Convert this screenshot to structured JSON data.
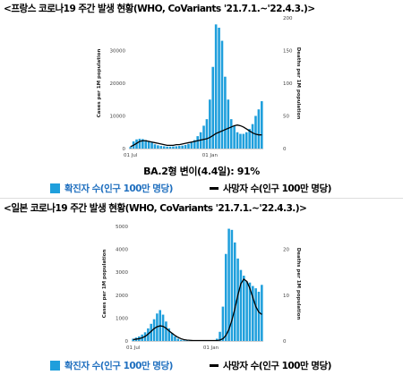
{
  "titles": {
    "france": "<프랑스 코로나19 주간 발생 현황(WHO, CoVariants '21.7.1.~'22.4.3.)>",
    "japan": "<일본 코로나19 주간 발생 현황(WHO, CoVariants '21.7.1.~'22.4.3.)>"
  },
  "note": "BA.2형 변이(4.4일): 91%",
  "legend": {
    "bar_label": "확진자 수(인구 100만 명당)",
    "line_label": "사망자 수(인구 100만 명당)",
    "bar_color": "#1f9fdc",
    "line_color": "#000000"
  },
  "chart_data": [
    {
      "type": "bar",
      "title": "",
      "xlabel": "",
      "ylabel": "Cases per 1M population",
      "y2label": "Deaths per 1M population",
      "ylim": [
        0,
        40000
      ],
      "y2lim": [
        0,
        200
      ],
      "yticks": [
        0,
        10000,
        20000,
        30000
      ],
      "y2ticks": [
        0,
        50,
        100,
        150,
        200
      ],
      "xticks": [
        "01 Jul",
        "01 Jan"
      ],
      "grid": false,
      "series": [
        {
          "name": "확진자 수(인구 100만 명당)",
          "kind": "bar",
          "axis": "left",
          "values": [
            500,
            2200,
            2800,
            3000,
            2900,
            2600,
            2200,
            1800,
            1300,
            1000,
            800,
            700,
            600,
            600,
            650,
            700,
            800,
            900,
            1100,
            1400,
            1900,
            2600,
            3800,
            5000,
            7000,
            9000,
            15000,
            25000,
            38000,
            37000,
            33000,
            22000,
            15000,
            9000,
            7000,
            5000,
            4500,
            4500,
            5000,
            6000,
            7500,
            10000,
            12000,
            14500
          ]
        },
        {
          "name": "사망자 수(인구 100만 명당)",
          "kind": "line",
          "axis": "right",
          "values": [
            3,
            5,
            8,
            11,
            12,
            12,
            11,
            10,
            9,
            8,
            7,
            6,
            5,
            5,
            5,
            6,
            6,
            7,
            8,
            9,
            10,
            11,
            12,
            13,
            14,
            15,
            17,
            20,
            23,
            25,
            27,
            29,
            31,
            33,
            35,
            36,
            35,
            33,
            30,
            27,
            24,
            22,
            21,
            21
          ]
        }
      ]
    },
    {
      "type": "bar",
      "title": "",
      "xlabel": "",
      "ylabel": "Cases per 1M population",
      "y2label": "Deaths per 1M population",
      "ylim": [
        0,
        5000
      ],
      "y2lim": [
        0,
        25
      ],
      "yticks": [
        0,
        1000,
        2000,
        3000,
        4000,
        5000
      ],
      "y2ticks": [
        0,
        10,
        20
      ],
      "xticks": [
        "01 Jul",
        "01 Jan"
      ],
      "grid": false,
      "series": [
        {
          "name": "확진자 수(인구 100만 명당)",
          "kind": "bar",
          "axis": "left",
          "values": [
            100,
            150,
            200,
            280,
            380,
            550,
            750,
            950,
            1200,
            1350,
            1150,
            850,
            550,
            350,
            200,
            100,
            50,
            30,
            20,
            15,
            10,
            10,
            10,
            10,
            10,
            10,
            15,
            30,
            100,
            400,
            1500,
            3800,
            4900,
            4850,
            4300,
            3600,
            3100,
            2850,
            2600,
            2550,
            2400,
            2300,
            2150,
            2450
          ]
        },
        {
          "name": "사망자 수(인구 100만 명당)",
          "kind": "line",
          "axis": "right",
          "values": [
            0.3,
            0.4,
            0.5,
            0.7,
            1,
            1.5,
            2.1,
            2.7,
            3.1,
            3.3,
            3.2,
            2.8,
            2.2,
            1.7,
            1.2,
            0.8,
            0.5,
            0.3,
            0.2,
            0.15,
            0.1,
            0.1,
            0.1,
            0.1,
            0.1,
            0.1,
            0.1,
            0.1,
            0.1,
            0.2,
            0.5,
            1.2,
            2.5,
            4.5,
            7,
            10,
            12.5,
            13.5,
            13,
            11.5,
            9.5,
            7.5,
            6.3,
            5.8
          ]
        }
      ]
    }
  ]
}
